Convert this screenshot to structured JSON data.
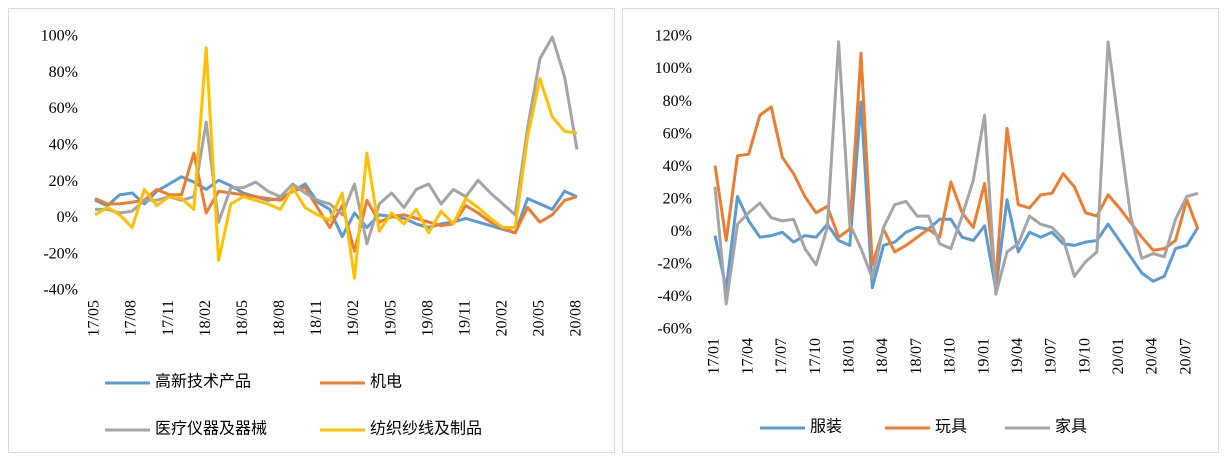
{
  "chart_data": [
    {
      "type": "line",
      "categories": [
        "17/05",
        null,
        null,
        "17/08",
        null,
        null,
        "17/11",
        null,
        null,
        "18/02",
        null,
        null,
        "18/05",
        null,
        null,
        "18/08",
        null,
        null,
        "18/11",
        null,
        null,
        "19/02",
        null,
        null,
        "19/05",
        null,
        null,
        "19/08",
        null,
        null,
        "19/11",
        null,
        null,
        "20/02",
        null,
        null,
        "20/05",
        null,
        null,
        "20/08"
      ],
      "ylim": [
        -40,
        100
      ],
      "yticks": [
        {
          "value": -40,
          "label": "-40%"
        },
        {
          "value": -20,
          "label": "-20%"
        },
        {
          "value": 0,
          "label": "0%"
        },
        {
          "value": 20,
          "label": "20%"
        },
        {
          "value": 40,
          "label": "40%"
        },
        {
          "value": 60,
          "label": "60%"
        },
        {
          "value": 80,
          "label": "80%"
        },
        {
          "value": 100,
          "label": "100%"
        }
      ],
      "series": [
        {
          "name": "高新技术产品",
          "color": "#5b9bd5",
          "values": [
            10,
            7,
            13,
            14,
            8,
            15,
            19,
            23,
            20,
            16,
            21,
            18,
            14,
            12,
            10,
            11,
            15,
            19,
            9,
            5,
            -10,
            3,
            -5,
            2,
            1,
            0,
            -3,
            -5,
            -3,
            -2,
            0,
            -2,
            -4,
            -6,
            -8,
            11,
            8,
            5,
            15,
            12
          ]
        },
        {
          "name": "机电",
          "color": "#ed7d31",
          "values": [
            11,
            8,
            8,
            9,
            10,
            16,
            13,
            13,
            36,
            3,
            15,
            14,
            13,
            12,
            11,
            10,
            15,
            17,
            6,
            -5,
            7,
            -18,
            10,
            -2,
            1,
            2,
            0,
            -2,
            -4,
            -3,
            7,
            3,
            -2,
            -5,
            -8,
            6,
            -2,
            2,
            10,
            12
          ]
        },
        {
          "name": "医疗仪器及器械",
          "color": "#a5a5a5",
          "values": [
            5,
            5,
            3,
            4,
            10,
            10,
            12,
            10,
            12,
            53,
            -2,
            17,
            17,
            20,
            15,
            12,
            19,
            14,
            10,
            8,
            2,
            19,
            -14,
            8,
            14,
            6,
            16,
            19,
            8,
            16,
            12,
            21,
            14,
            8,
            2,
            50,
            88,
            100,
            78,
            38
          ]
        },
        {
          "name": "纺织纱线及制品",
          "color": "#ffc000",
          "values": [
            2,
            6,
            2,
            -5,
            16,
            7,
            12,
            11,
            5,
            94,
            -23,
            8,
            12,
            10,
            8,
            5,
            17,
            6,
            2,
            -1,
            14,
            -33,
            36,
            -7,
            3,
            -3,
            5,
            -8,
            4,
            -3,
            11,
            6,
            0,
            -5,
            -5,
            45,
            77,
            56,
            48,
            47
          ]
        }
      ]
    },
    {
      "type": "line",
      "categories": [
        "17/01",
        null,
        null,
        "17/04",
        null,
        null,
        "17/07",
        null,
        null,
        "17/10",
        null,
        null,
        "18/01",
        null,
        null,
        "18/04",
        null,
        null,
        "18/07",
        null,
        null,
        "18/10",
        null,
        null,
        "19/01",
        null,
        null,
        "19/04",
        null,
        null,
        "19/07",
        null,
        null,
        "19/10",
        null,
        null,
        "20/01",
        null,
        null,
        "20/04",
        null,
        null,
        "20/07",
        null
      ],
      "ylim": [
        -60,
        120
      ],
      "yticks": [
        {
          "value": -60,
          "label": "-60%"
        },
        {
          "value": -40,
          "label": "-40%"
        },
        {
          "value": -20,
          "label": "-20%"
        },
        {
          "value": 0,
          "label": "0%"
        },
        {
          "value": 20,
          "label": "20%"
        },
        {
          "value": 40,
          "label": "40%"
        },
        {
          "value": 60,
          "label": "60%"
        },
        {
          "value": 80,
          "label": "80%"
        },
        {
          "value": 100,
          "label": "100%"
        },
        {
          "value": 120,
          "label": "120%"
        }
      ],
      "series": [
        {
          "name": "服装",
          "color": "#5b9bd5",
          "values": [
            -2,
            -35,
            22,
            7,
            -3,
            -2,
            0,
            -6,
            -2,
            -3,
            5,
            -5,
            -8,
            80,
            -34,
            -8,
            -6,
            0,
            3,
            2,
            8,
            8,
            -3,
            -5,
            4,
            -35,
            20,
            -12,
            0,
            -3,
            0,
            -7,
            -8,
            -6,
            -5,
            5,
            -5,
            -15,
            -25,
            -30,
            -27,
            -10,
            -8,
            3
          ]
        },
        {
          "name": "玩具",
          "color": "#ed7d31",
          "values": [
            41,
            -5,
            47,
            48,
            72,
            77,
            46,
            36,
            22,
            12,
            16,
            -3,
            2,
            110,
            -20,
            2,
            -12,
            -8,
            -3,
            2,
            -3,
            31,
            12,
            3,
            30,
            -30,
            64,
            17,
            15,
            23,
            24,
            36,
            28,
            12,
            10,
            23,
            15,
            6,
            -3,
            -11,
            -10,
            -5,
            20,
            2
          ]
        },
        {
          "name": "家具",
          "color": "#a5a5a5",
          "values": [
            28,
            -44,
            5,
            12,
            18,
            9,
            7,
            8,
            -10,
            -20,
            3,
            117,
            5,
            -10,
            -28,
            3,
            17,
            19,
            10,
            10,
            -7,
            -10,
            10,
            32,
            72,
            -38,
            -12,
            -7,
            10,
            5,
            3,
            -4,
            -27,
            -18,
            -12,
            117,
            62,
            10,
            -16,
            -13,
            -15,
            8,
            22,
            24
          ]
        }
      ]
    }
  ]
}
